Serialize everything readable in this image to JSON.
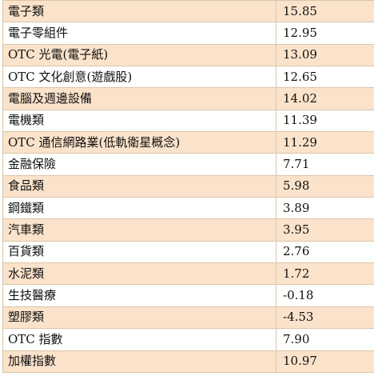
{
  "table": {
    "rows": [
      {
        "name": "電子類",
        "value": "15.85"
      },
      {
        "name": "電子零組件",
        "value": "12.95"
      },
      {
        "name": "OTC 光電(電子紙)",
        "value": "13.09"
      },
      {
        "name": "OTC 文化創意(遊戲股)",
        "value": "12.65"
      },
      {
        "name": "電腦及週邊設備",
        "value": "14.02"
      },
      {
        "name": "電機類",
        "value": "11.39"
      },
      {
        "name": "OTC 通信網路業(低軌衛星概念)",
        "value": "11.29"
      },
      {
        "name": "金融保險",
        "value": "7.71"
      },
      {
        "name": "食品類",
        "value": "5.98"
      },
      {
        "name": "鋼鐵類",
        "value": "3.89"
      },
      {
        "name": "汽車類",
        "value": "3.95"
      },
      {
        "name": "百貨類",
        "value": "2.76"
      },
      {
        "name": "水泥類",
        "value": "1.72"
      },
      {
        "name": "生技醫療",
        "value": "-0.18"
      },
      {
        "name": "塑膠類",
        "value": "-4.53"
      },
      {
        "name": "OTC 指數",
        "value": "7.90"
      },
      {
        "name": "加權指數",
        "value": "10.97"
      }
    ]
  }
}
